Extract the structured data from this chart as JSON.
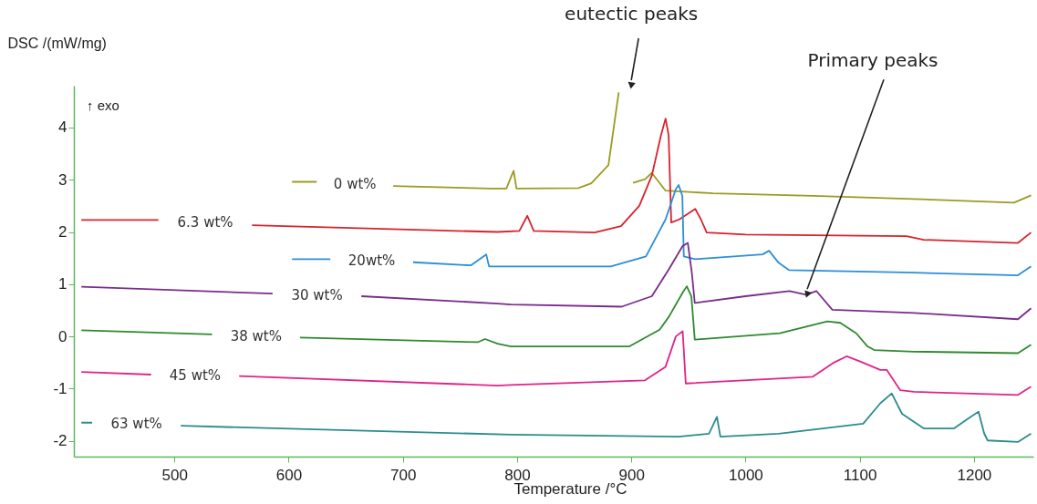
{
  "chart_data": {
    "type": "line",
    "xlabel": "Temperature /°C",
    "ylabel": "DSC /(mW/mg)",
    "xlim": [
      412,
      1252
    ],
    "ylim": [
      -2.3,
      4.8
    ],
    "xticks": [
      500,
      600,
      700,
      800,
      900,
      1000,
      1100,
      1200
    ],
    "yticks": [
      -2,
      -1,
      0,
      1,
      2,
      3,
      4
    ],
    "grid": false,
    "legend": false,
    "marker": "none",
    "line_style": "solid",
    "annotations": [
      "↑ exo",
      {
        "text": "eutectic peaks",
        "x": 900,
        "y": 4.8
      },
      {
        "text": "Primary peaks",
        "x": 1054,
        "y": 0.8
      }
    ],
    "series": [
      {
        "name": "0 wt%",
        "color": "#9b9b21",
        "x": [
          603,
          624.6,
          650,
          691.6,
          777,
          790.6,
          797,
          799.5,
          853.7,
          865,
          880,
          889,
          891,
          901,
          901.5,
          912,
          918,
          930,
          971.6,
          1059,
          1147.5,
          1235,
          1250
        ],
        "values": [
          2.96,
          2.96,
          null,
          2.88,
          2.83,
          2.83,
          3.17,
          2.83,
          2.84,
          2.93,
          3.28,
          4.67,
          null,
          null,
          2.94,
          3.01,
          3.13,
          2.79,
          2.74,
          2.69,
          2.63,
          2.56,
          2.7
        ]
      },
      {
        "name": "6.3 wt%",
        "color": "#d6232c",
        "x": [
          418.6,
          486,
          530,
          568,
          782.6,
          802,
          809,
          814.6,
          868,
          891,
          907,
          918,
          926,
          930,
          932.7,
          935,
          942,
          956,
          961,
          966,
          1000,
          1141,
          1156,
          1238.5,
          1250
        ],
        "values": [
          2.23,
          2.23,
          null,
          2.13,
          2.0,
          2.02,
          2.31,
          2.02,
          1.99,
          2.11,
          2.5,
          3.08,
          3.85,
          4.17,
          3.85,
          2.18,
          2.24,
          2.44,
          2.24,
          1.99,
          1.95,
          1.92,
          1.85,
          1.79,
          1.99
        ]
      },
      {
        "name": "20wt%",
        "color": "#2b8ed8",
        "x": [
          603,
          636.5,
          670,
          709,
          759.5,
          773,
          775.5,
          794.6,
          882,
          912.8,
          930,
          939,
          941.5,
          944.7,
          946,
          956,
          1015,
          1020.6,
          1029,
          1038,
          1147.5,
          1238.5,
          1250
        ],
        "values": [
          1.48,
          1.48,
          null,
          1.42,
          1.36,
          1.57,
          1.34,
          1.34,
          1.34,
          1.53,
          2.24,
          2.82,
          2.9,
          2.69,
          1.53,
          1.48,
          1.57,
          1.64,
          1.41,
          1.27,
          1.22,
          1.17,
          1.34
        ]
      },
      {
        "name": "30 wt%",
        "color": "#7a2c8c",
        "x": [
          418.6,
          586,
          625,
          663.7,
          783,
          794.6,
          891.6,
          918,
          933,
          944.9,
          949.5,
          953,
          955.6,
          1000,
          1038.5,
          1053,
          1062,
          1076,
          1147.5,
          1238.5,
          1250
        ],
        "values": [
          0.95,
          0.82,
          null,
          0.77,
          0.63,
          0.61,
          0.57,
          0.77,
          1.29,
          1.73,
          1.79,
          1.22,
          0.64,
          0.77,
          0.87,
          0.8,
          0.87,
          0.51,
          0.45,
          0.33,
          0.54
        ]
      },
      {
        "name": "38 wt%",
        "color": "#2e8a2e",
        "x": [
          418.6,
          533,
          570,
          610,
          765.6,
          772,
          783,
          794.6,
          898.4,
          924.8,
          933,
          945,
          948.6,
          952.6,
          955.6,
          1030,
          1053.3,
          1071.7,
          1083,
          1097,
          1106.8,
          1112.7,
          1147.5,
          1238.5,
          1250
        ],
        "values": [
          0.12,
          0.04,
          null,
          -0.02,
          -0.11,
          -0.05,
          -0.14,
          -0.19,
          -0.19,
          0.13,
          0.38,
          0.84,
          0.96,
          0.77,
          -0.06,
          0.06,
          0.19,
          0.29,
          0.26,
          0.06,
          -0.19,
          -0.26,
          -0.29,
          -0.32,
          -0.16
        ]
      },
      {
        "name": "45 wt%",
        "color": "#e0248a",
        "x": [
          418.6,
          479.6,
          520,
          556.7,
          783,
          794.6,
          912,
          930,
          939,
          945,
          947.7,
          1059,
          1076.5,
          1088.5,
          1100.4,
          1118,
          1123.6,
          1135.5,
          1147.5,
          1238.5,
          1250
        ],
        "values": [
          -0.68,
          -0.73,
          null,
          -0.76,
          -0.94,
          -0.93,
          -0.84,
          -0.58,
          0.0,
          0.1,
          -0.9,
          -0.77,
          -0.51,
          -0.38,
          -0.48,
          -0.64,
          -0.64,
          -1.03,
          -1.06,
          -1.12,
          -0.96
        ]
      },
      {
        "name": "63 wt%",
        "color": "#2b8c8c",
        "x": [
          418.6,
          428,
          465,
          505.6,
          794.6,
          941.5,
          968,
          975,
          978,
          1029,
          1103,
          1118,
          1128,
          1137,
          1156,
          1182.6,
          1197,
          1204,
          1209,
          1212,
          1238.5,
          1250
        ],
        "values": [
          -1.65,
          -1.65,
          null,
          -1.71,
          -1.88,
          -1.92,
          -1.86,
          -1.54,
          -1.92,
          -1.86,
          -1.67,
          -1.28,
          -1.09,
          -1.48,
          -1.76,
          -1.76,
          -1.54,
          -1.44,
          -1.86,
          -1.99,
          -2.02,
          -1.86
        ]
      }
    ]
  }
}
